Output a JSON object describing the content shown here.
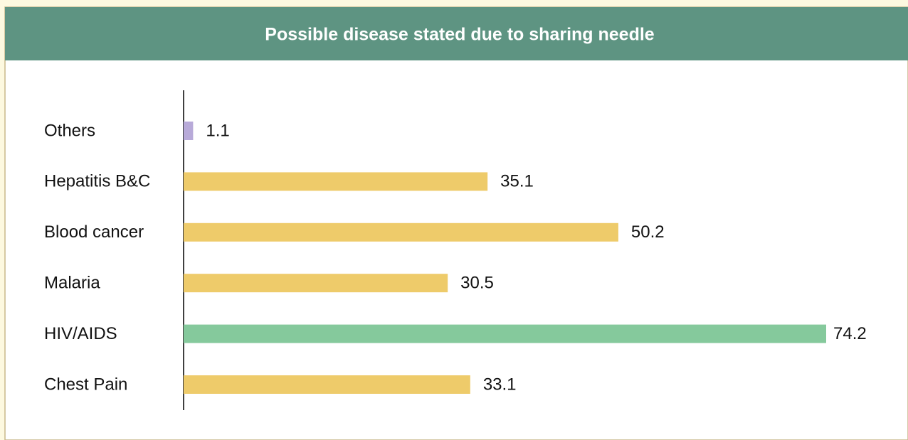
{
  "chart_data": {
    "type": "bar",
    "orientation": "horizontal",
    "title": "Possible disease stated due to sharing needle",
    "categories": [
      "Others",
      "Hepatitis B&C",
      "Blood cancer",
      "Malaria",
      "HIV/AIDS",
      "Chest Pain"
    ],
    "values": [
      1.1,
      35.1,
      50.2,
      30.5,
      74.2,
      33.1
    ],
    "colors": [
      "#b8aad9",
      "#eecb6a",
      "#eecb6a",
      "#eecb6a",
      "#85c99c",
      "#eecb6a"
    ]
  }
}
